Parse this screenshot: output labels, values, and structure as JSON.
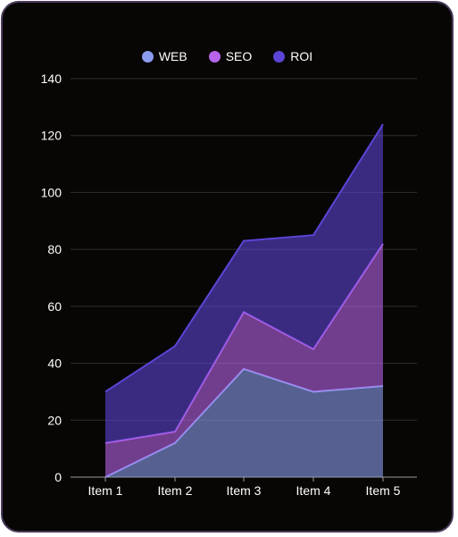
{
  "chart_data": {
    "type": "area",
    "stacked": true,
    "categories": [
      "Item 1",
      "Item 2",
      "Item 3",
      "Item 4",
      "Item 5"
    ],
    "series": [
      {
        "name": "WEB",
        "values": [
          0,
          12,
          38,
          30,
          32
        ],
        "color": "#8a9cf0"
      },
      {
        "name": "SEO",
        "values": [
          12,
          4,
          20,
          15,
          50
        ],
        "color": "#b764ea"
      },
      {
        "name": "ROI",
        "values": [
          18,
          30,
          25,
          40,
          42
        ],
        "color": "#5b45d6"
      }
    ],
    "ylim": [
      0,
      140
    ],
    "yticks": [
      0,
      20,
      40,
      60,
      80,
      100,
      120,
      140
    ],
    "grid": true,
    "legend": "top-center"
  }
}
